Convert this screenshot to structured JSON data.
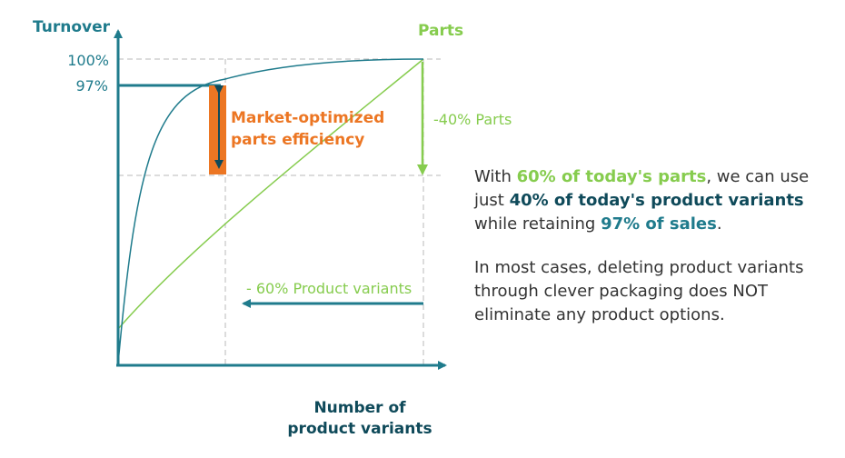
{
  "colors": {
    "teal": "#1f7b8c",
    "dark_teal": "#0f4a5a",
    "green": "#86cc4e",
    "orange": "#ec7623",
    "grid": "#b8b8b8",
    "text": "#333333"
  },
  "axes": {
    "y_title": "Turnover",
    "x_title_line1": "Number of",
    "x_title_line2": "product variants",
    "tick_100": "100%",
    "tick_97": "97%"
  },
  "curves": {
    "parts_title": "Parts",
    "parts_delta": "-40% Parts",
    "variants_delta": "- 60% Product variants"
  },
  "callout": {
    "line1": "Market-optimized",
    "line2": "parts efficiency"
  },
  "text": {
    "p1_a": "With ",
    "p1_b": "60% of today's parts",
    "p1_c": ", we can use just ",
    "p1_d": "40% of today's product variants",
    "p1_e": " while retaining ",
    "p1_f": "97% of sales",
    "p1_g": ".",
    "p2": "In most cases, deleting product variants through clever packaging does NOT eliminate any product options."
  }
}
